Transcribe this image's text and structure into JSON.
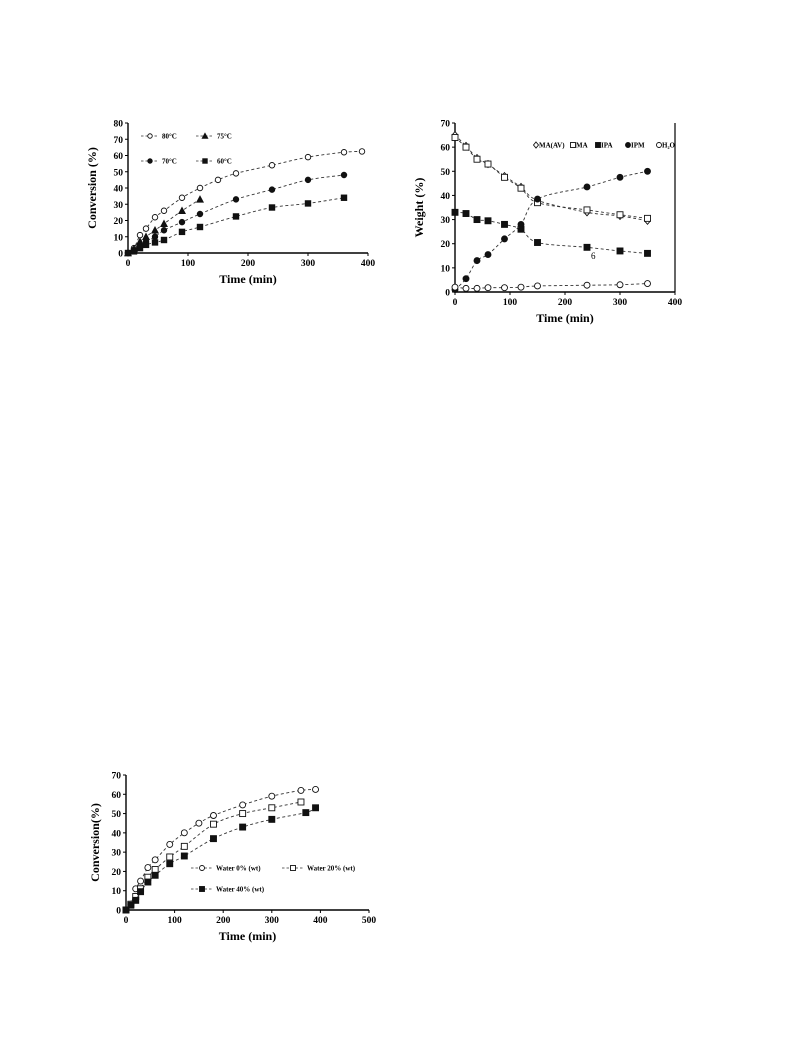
{
  "chart_data": [
    {
      "type": "scatter",
      "xlabel": "Time (min)",
      "ylabel": "Conversion (%)",
      "xlim": [
        0,
        400
      ],
      "ylim": [
        0,
        80
      ],
      "xticks": [
        "0",
        "100",
        "200",
        "300",
        "400"
      ],
      "yticks": [
        "0",
        "10",
        "20",
        "30",
        "40",
        "50",
        "60",
        "70",
        "80"
      ],
      "grid": false,
      "legend_position": "top-left",
      "series": [
        {
          "name": "80°C",
          "marker": "open-circle",
          "x": [
            0,
            10,
            20,
            30,
            45,
            60,
            90,
            120,
            150,
            180,
            240,
            300,
            360,
            390
          ],
          "y": [
            0,
            3,
            11,
            15,
            22,
            26,
            34,
            40,
            45,
            49,
            54,
            59,
            62,
            62.5
          ]
        },
        {
          "name": "75°C",
          "marker": "filled-triangle",
          "x": [
            0,
            10,
            20,
            30,
            45,
            60,
            90,
            120
          ],
          "y": [
            0,
            2.5,
            7,
            10,
            14,
            18,
            26,
            33
          ]
        },
        {
          "name": "70°C",
          "marker": "filled-circle",
          "x": [
            0,
            10,
            20,
            30,
            45,
            60,
            90,
            120,
            180,
            240,
            300,
            360
          ],
          "y": [
            0,
            2,
            5,
            7,
            10,
            14,
            19,
            24,
            33,
            39,
            45,
            48
          ]
        },
        {
          "name": "60°C",
          "marker": "filled-square",
          "x": [
            0,
            10,
            20,
            30,
            45,
            60,
            90,
            120,
            180,
            240,
            300,
            360
          ],
          "y": [
            0,
            1,
            3,
            5,
            6.5,
            8,
            13,
            16,
            22.5,
            28,
            30.5,
            34
          ]
        }
      ]
    },
    {
      "type": "scatter",
      "xlabel": "Time (min)",
      "ylabel": "Weight (%)",
      "xlim": [
        0,
        400
      ],
      "ylim": [
        0,
        70
      ],
      "xticks": [
        "0",
        "100",
        "200",
        "300",
        "400"
      ],
      "yticks": [
        "0",
        "10",
        "20",
        "30",
        "40",
        "50",
        "60",
        "70"
      ],
      "grid": false,
      "legend_position": "top-right",
      "annotation": "6",
      "series": [
        {
          "name": "MA(AV)",
          "marker": "open-diamond",
          "x": [
            0,
            20,
            40,
            60,
            90,
            120,
            150,
            240,
            300,
            350
          ],
          "y": [
            65,
            60.5,
            55.5,
            53,
            48,
            43.5,
            38,
            33,
            31.5,
            29.5
          ]
        },
        {
          "name": "MA",
          "marker": "open-square",
          "x": [
            0,
            20,
            40,
            60,
            90,
            120,
            150,
            240,
            300,
            350
          ],
          "y": [
            64,
            60,
            55,
            53,
            47.5,
            43,
            37,
            34,
            32,
            30.5
          ]
        },
        {
          "name": "IPA",
          "marker": "filled-square",
          "x": [
            0,
            20,
            40,
            60,
            90,
            120,
            150,
            240,
            300,
            350
          ],
          "y": [
            33,
            32.5,
            30,
            29.5,
            28,
            26,
            20.5,
            18.5,
            17,
            16
          ]
        },
        {
          "name": "IPM",
          "marker": "filled-circle",
          "x": [
            0,
            20,
            40,
            60,
            90,
            120,
            150,
            240,
            300,
            350
          ],
          "y": [
            1,
            5.5,
            13,
            15.5,
            22,
            28,
            38.5,
            43.5,
            47.5,
            50
          ]
        },
        {
          "name": "H₂O",
          "marker": "open-circle",
          "x": [
            0,
            20,
            40,
            60,
            90,
            120,
            150,
            240,
            300,
            350
          ],
          "y": [
            2,
            1.5,
            1.5,
            1.8,
            1.8,
            2,
            2.5,
            2.8,
            3,
            3.5
          ]
        }
      ]
    },
    {
      "type": "scatter",
      "xlabel": "Time (min)",
      "ylabel": "Conversion(%)",
      "xlim": [
        0,
        500
      ],
      "ylim": [
        0,
        70
      ],
      "xticks": [
        "0",
        "100",
        "200",
        "300",
        "400",
        "500"
      ],
      "yticks": [
        "0",
        "10",
        "20",
        "30",
        "40",
        "50",
        "60",
        "70"
      ],
      "grid": false,
      "legend_position": "center-right",
      "series": [
        {
          "name": "Water 0% (wt)",
          "marker": "open-circle",
          "x": [
            0,
            10,
            20,
            30,
            45,
            60,
            90,
            120,
            150,
            180,
            240,
            300,
            360,
            390
          ],
          "y": [
            0,
            3,
            11,
            15,
            22,
            26,
            34,
            40,
            45,
            49,
            54.5,
            59,
            62,
            62.5
          ]
        },
        {
          "name": "Water 20% (wt)",
          "marker": "open-square",
          "x": [
            0,
            10,
            20,
            30,
            45,
            60,
            90,
            120,
            180,
            240,
            300,
            360
          ],
          "y": [
            0,
            3,
            7,
            11,
            17,
            21,
            27.5,
            33,
            44.5,
            50,
            53,
            56
          ]
        },
        {
          "name": "Water 40% (wt)",
          "marker": "filled-square",
          "x": [
            0,
            10,
            20,
            30,
            45,
            60,
            90,
            120,
            180,
            240,
            300,
            370,
            390
          ],
          "y": [
            0,
            2.5,
            5,
            9.5,
            14.5,
            18,
            24,
            28,
            37,
            43,
            47,
            50.5,
            53
          ]
        }
      ]
    }
  ]
}
